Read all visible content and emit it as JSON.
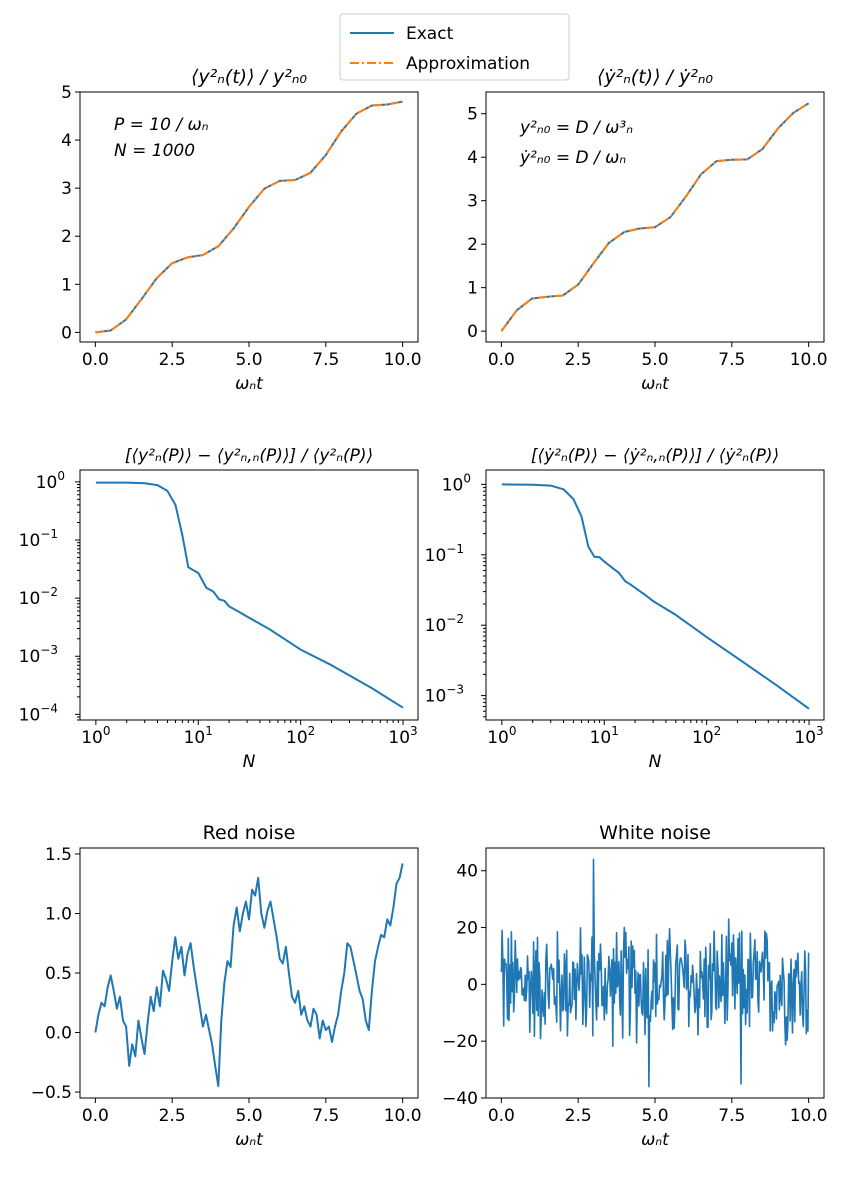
{
  "legend": {
    "entries": [
      {
        "label": "Exact",
        "color": "#1f77b4",
        "style": "solid"
      },
      {
        "label": "Approximation",
        "color": "#ff7f0e",
        "style": "dashdot"
      }
    ],
    "placement": "top-center"
  },
  "chart_data": [
    {
      "id": "p1",
      "type": "line",
      "title": "⟨y²ₙ(t)⟩ / y²ₙ₀",
      "xlabel": "ωₙt",
      "ylabel": "",
      "xlim": [
        -0.5,
        10.5
      ],
      "ylim": [
        -0.2,
        5.0
      ],
      "xticks": [
        0,
        2.5,
        5,
        7.5,
        10
      ],
      "xticklabels": [
        "0.0",
        "2.5",
        "5.0",
        "7.5",
        "10.0"
      ],
      "yticks": [
        0,
        1,
        2,
        3,
        4,
        5
      ],
      "yticklabels": [
        "0",
        "1",
        "2",
        "3",
        "4",
        "5"
      ],
      "annotations": [
        "P = 10 / ωₙ",
        "N = 1000"
      ],
      "grid": false,
      "series": [
        {
          "name": "Exact",
          "color": "#1f77b4",
          "x": [
            0,
            0.5,
            1,
            1.5,
            2,
            2.5,
            3,
            3.5,
            4,
            4.5,
            5,
            5.5,
            6,
            6.5,
            7,
            7.5,
            8,
            8.5,
            9,
            9.5,
            10
          ],
          "y": [
            0,
            0.04,
            0.27,
            0.69,
            1.13,
            1.44,
            1.56,
            1.61,
            1.79,
            2.16,
            2.61,
            2.99,
            3.15,
            3.17,
            3.32,
            3.69,
            4.18,
            4.55,
            4.72,
            4.74,
            4.8
          ]
        },
        {
          "name": "Approximation",
          "color": "#ff7f0e",
          "x": [
            0,
            0.5,
            1,
            1.5,
            2,
            2.5,
            3,
            3.5,
            4,
            4.5,
            5,
            5.5,
            6,
            6.5,
            7,
            7.5,
            8,
            8.5,
            9,
            9.5,
            10
          ],
          "y": [
            0,
            0.04,
            0.27,
            0.69,
            1.13,
            1.44,
            1.56,
            1.61,
            1.79,
            2.16,
            2.61,
            2.99,
            3.15,
            3.17,
            3.32,
            3.69,
            4.18,
            4.55,
            4.72,
            4.74,
            4.8
          ]
        }
      ]
    },
    {
      "id": "p2",
      "type": "line",
      "title": "⟨ẏ²ₙ(t)⟩ / ẏ²ₙ₀",
      "xlabel": "ωₙt",
      "ylabel": "",
      "xlim": [
        -0.5,
        10.5
      ],
      "ylim": [
        -0.25,
        5.5
      ],
      "xticks": [
        0,
        2.5,
        5,
        7.5,
        10
      ],
      "xticklabels": [
        "0.0",
        "2.5",
        "5.0",
        "7.5",
        "10.0"
      ],
      "yticks": [
        0,
        1,
        2,
        3,
        4,
        5
      ],
      "yticklabels": [
        "0",
        "1",
        "2",
        "3",
        "4",
        "5"
      ],
      "annotations": [
        "y²ₙ₀ = D / ω³ₙ",
        "ẏ²ₙ₀ = D / ωₙ"
      ],
      "grid": false,
      "series": [
        {
          "name": "Exact",
          "color": "#1f77b4",
          "x": [
            0,
            0.5,
            1,
            1.5,
            2,
            2.5,
            3,
            3.5,
            4,
            4.5,
            5,
            5.5,
            6,
            6.5,
            7,
            7.5,
            8,
            8.5,
            9,
            9.5,
            10
          ],
          "y": [
            0,
            0.48,
            0.75,
            0.79,
            0.82,
            1.07,
            1.56,
            2.03,
            2.28,
            2.36,
            2.39,
            2.62,
            3.09,
            3.61,
            3.91,
            3.94,
            3.95,
            4.19,
            4.66,
            5.02,
            5.24
          ]
        },
        {
          "name": "Approximation",
          "color": "#ff7f0e",
          "x": [
            0,
            0.5,
            1,
            1.5,
            2,
            2.5,
            3,
            3.5,
            4,
            4.5,
            5,
            5.5,
            6,
            6.5,
            7,
            7.5,
            8,
            8.5,
            9,
            9.5,
            10
          ],
          "y": [
            0,
            0.48,
            0.75,
            0.79,
            0.82,
            1.07,
            1.56,
            2.03,
            2.28,
            2.36,
            2.39,
            2.62,
            3.09,
            3.61,
            3.91,
            3.94,
            3.95,
            4.19,
            4.66,
            5.02,
            5.24
          ]
        }
      ]
    },
    {
      "id": "p3",
      "type": "line",
      "title": "[⟨y²ₙ(P)⟩ − ⟨y²ₙ,ₙ(P)⟩] / ⟨y²ₙ(P)⟩",
      "xlabel": "N",
      "ylabel": "",
      "xscale": "log",
      "yscale": "log",
      "xlim": [
        0.7,
        1400
      ],
      "ylim": [
        8e-05,
        1.6
      ],
      "xticks": [
        1,
        10,
        100,
        1000
      ],
      "xticklabels": [
        "10",
        "10",
        "10",
        "10"
      ],
      "xtickexps": [
        "0",
        "1",
        "2",
        "3"
      ],
      "yticks": [
        0.0001,
        0.001,
        0.01,
        0.1,
        1
      ],
      "yticklabels": [
        "10",
        "10",
        "10",
        "10",
        "10"
      ],
      "ytickexps": [
        "−4",
        "−3",
        "−2",
        "−1",
        "0"
      ],
      "grid": false,
      "series": [
        {
          "name": "",
          "color": "#1f77b4",
          "x": [
            1,
            2,
            3,
            4,
            5,
            6,
            7,
            8,
            9,
            10,
            12,
            14,
            16,
            18,
            20,
            25,
            30,
            50,
            100,
            200,
            500,
            1000
          ],
          "y": [
            0.97,
            0.97,
            0.95,
            0.88,
            0.7,
            0.4,
            0.12,
            0.034,
            0.03,
            0.027,
            0.015,
            0.013,
            0.0095,
            0.009,
            0.0072,
            0.0058,
            0.0048,
            0.0029,
            0.0013,
            0.0007,
            0.00028,
            0.00013
          ]
        }
      ]
    },
    {
      "id": "p4",
      "type": "line",
      "title": "[⟨ẏ²ₙ(P)⟩ − ⟨ẏ²ₙ,ₙ(P)⟩] / ⟨ẏ²ₙ(P)⟩",
      "xlabel": "N",
      "ylabel": "",
      "xscale": "log",
      "yscale": "log",
      "xlim": [
        0.7,
        1400
      ],
      "ylim": [
        0.00045,
        1.6
      ],
      "xticks": [
        1,
        10,
        100,
        1000
      ],
      "xticklabels": [
        "10",
        "10",
        "10",
        "10"
      ],
      "xtickexps": [
        "0",
        "1",
        "2",
        "3"
      ],
      "yticks": [
        0.001,
        0.01,
        0.1,
        1
      ],
      "yticklabels": [
        "10",
        "10",
        "10",
        "10"
      ],
      "ytickexps": [
        "−3",
        "−2",
        "−1",
        "0"
      ],
      "grid": false,
      "series": [
        {
          "name": "",
          "color": "#1f77b4",
          "x": [
            1,
            2,
            3,
            4,
            5,
            6,
            7,
            8,
            9,
            10,
            12,
            14,
            16,
            18,
            20,
            25,
            30,
            50,
            100,
            200,
            500,
            1000
          ],
          "y": [
            1.0,
            0.99,
            0.96,
            0.85,
            0.62,
            0.35,
            0.13,
            0.094,
            0.092,
            0.08,
            0.065,
            0.055,
            0.042,
            0.038,
            0.034,
            0.027,
            0.022,
            0.014,
            0.0068,
            0.0034,
            0.00135,
            0.00065
          ]
        }
      ]
    },
    {
      "id": "p5",
      "type": "line",
      "title": "Red noise",
      "xlabel": "ωₙt",
      "ylabel": "",
      "xlim": [
        -0.5,
        10.5
      ],
      "ylim": [
        -0.55,
        1.55
      ],
      "xticks": [
        0,
        2.5,
        5,
        7.5,
        10
      ],
      "xticklabels": [
        "0.0",
        "2.5",
        "5.0",
        "7.5",
        "10.0"
      ],
      "yticks": [
        -0.5,
        0.0,
        0.5,
        1.0,
        1.5
      ],
      "yticklabels": [
        "−0.5",
        "0.0",
        "0.5",
        "1.0",
        "1.5"
      ],
      "grid": false,
      "series": [
        {
          "name": "",
          "color": "#1f77b4",
          "x": [
            0,
            0.1,
            0.2,
            0.3,
            0.4,
            0.5,
            0.6,
            0.7,
            0.8,
            0.9,
            1.0,
            1.1,
            1.2,
            1.3,
            1.4,
            1.5,
            1.6,
            1.7,
            1.8,
            1.9,
            2.0,
            2.1,
            2.2,
            2.3,
            2.4,
            2.5,
            2.6,
            2.7,
            2.8,
            2.9,
            3.0,
            3.1,
            3.2,
            3.3,
            3.4,
            3.5,
            3.6,
            3.7,
            3.8,
            3.9,
            4.0,
            4.1,
            4.2,
            4.3,
            4.4,
            4.5,
            4.6,
            4.7,
            4.8,
            4.9,
            5.0,
            5.1,
            5.2,
            5.3,
            5.4,
            5.5,
            5.6,
            5.7,
            5.8,
            5.9,
            6.0,
            6.1,
            6.2,
            6.3,
            6.4,
            6.5,
            6.6,
            6.7,
            6.8,
            6.9,
            7.0,
            7.1,
            7.2,
            7.3,
            7.4,
            7.5,
            7.6,
            7.7,
            7.8,
            7.9,
            8.0,
            8.1,
            8.2,
            8.3,
            8.4,
            8.5,
            8.6,
            8.7,
            8.8,
            8.9,
            9.0,
            9.1,
            9.2,
            9.3,
            9.4,
            9.5,
            9.6,
            9.7,
            9.8,
            9.9,
            10.0
          ],
          "y": [
            0.0,
            0.15,
            0.25,
            0.22,
            0.38,
            0.48,
            0.35,
            0.2,
            0.3,
            0.1,
            0.05,
            -0.28,
            -0.1,
            -0.2,
            0.1,
            -0.05,
            -0.18,
            0.08,
            0.3,
            0.18,
            0.38,
            0.22,
            0.52,
            0.45,
            0.35,
            0.6,
            0.8,
            0.62,
            0.72,
            0.48,
            0.66,
            0.75,
            0.55,
            0.38,
            0.22,
            0.05,
            0.15,
            0.02,
            -0.1,
            -0.28,
            -0.45,
            0.1,
            0.42,
            0.6,
            0.55,
            0.9,
            1.05,
            0.85,
            1.0,
            1.1,
            0.95,
            1.2,
            1.15,
            1.3,
            1.0,
            0.88,
            1.02,
            1.1,
            0.95,
            0.8,
            0.62,
            0.58,
            0.72,
            0.5,
            0.3,
            0.25,
            0.35,
            0.15,
            0.22,
            0.1,
            0.05,
            0.2,
            0.15,
            -0.05,
            0.1,
            0.02,
            0.05,
            -0.08,
            0.05,
            0.15,
            0.35,
            0.5,
            0.75,
            0.72,
            0.6,
            0.48,
            0.35,
            0.28,
            0.1,
            0.02,
            0.35,
            0.6,
            0.72,
            0.82,
            0.8,
            0.95,
            0.9,
            1.05,
            1.25,
            1.3,
            1.42
          ]
        }
      ]
    },
    {
      "id": "p6",
      "type": "line",
      "title": "White noise",
      "xlabel": "ωₙt",
      "ylabel": "",
      "xlim": [
        -0.5,
        10.5
      ],
      "ylim": [
        -40,
        48
      ],
      "xticks": [
        0,
        2.5,
        5,
        7.5,
        10
      ],
      "xticklabels": [
        "0.0",
        "2.5",
        "5.0",
        "7.5",
        "10.0"
      ],
      "yticks": [
        -40,
        -20,
        0,
        20,
        40
      ],
      "yticklabels": [
        "−40",
        "−20",
        "0",
        "20",
        "40"
      ],
      "grid": false,
      "series": [
        {
          "name": "",
          "color": "#1f77b4",
          "npoints": 401,
          "range": [
            -37,
            44
          ]
        }
      ]
    }
  ]
}
